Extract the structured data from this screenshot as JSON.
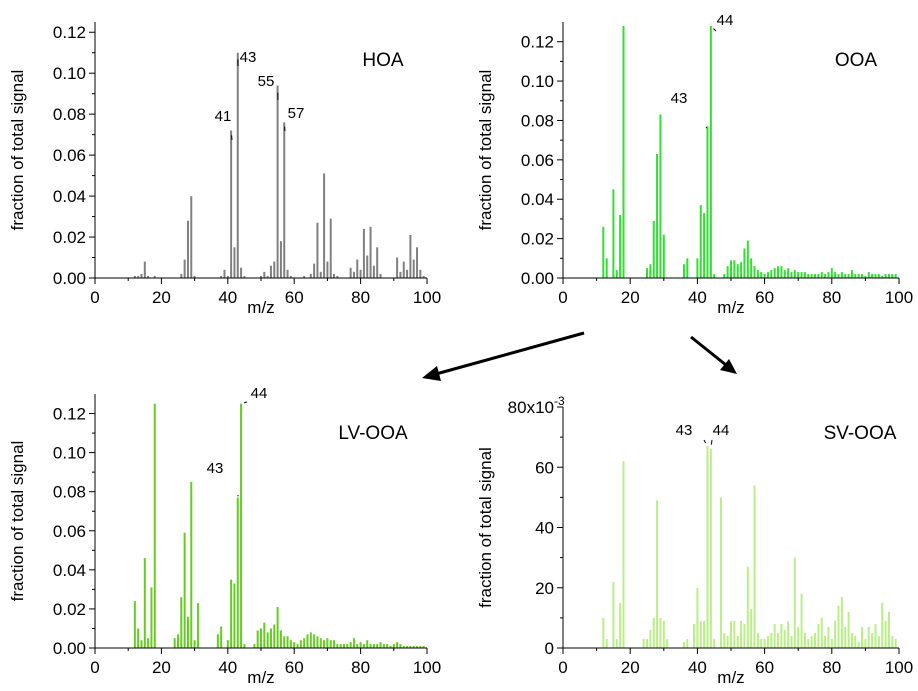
{
  "chart_data": [
    {
      "type": "bar",
      "name_label": "HOA",
      "ylabel": "fraction of total signal",
      "xlabel": "m/z",
      "xlim": [
        0,
        100
      ],
      "ylim": [
        0,
        0.125
      ],
      "xticks": [
        0,
        20,
        40,
        60,
        80,
        100
      ],
      "yticks": [
        0.0,
        0.02,
        0.04,
        0.06,
        0.08,
        0.1,
        0.12
      ],
      "ytick_labels": [
        "0.00",
        "0.02",
        "0.04",
        "0.06",
        "0.08",
        "0.10",
        "0.12"
      ],
      "y_multiplier_label": "",
      "color": "#808080",
      "x": [
        12,
        13,
        14,
        15,
        16,
        18,
        26,
        27,
        28,
        29,
        30,
        38,
        39,
        40,
        41,
        42,
        43,
        44,
        45,
        50,
        51,
        52,
        53,
        54,
        55,
        56,
        57,
        58,
        59,
        63,
        65,
        66,
        67,
        68,
        69,
        70,
        71,
        72,
        73,
        77,
        78,
        79,
        80,
        81,
        82,
        83,
        84,
        85,
        86,
        91,
        92,
        93,
        94,
        95,
        96,
        97,
        98,
        99
      ],
      "values": [
        0.001,
        0.001,
        0.002,
        0.008,
        0.001,
        0.001,
        0.002,
        0.009,
        0.028,
        0.04,
        0.001,
        0.001,
        0.004,
        0.001,
        0.072,
        0.015,
        0.11,
        0.005,
        0.001,
        0.001,
        0.003,
        0.001,
        0.006,
        0.008,
        0.094,
        0.018,
        0.076,
        0.004,
        0.001,
        0.001,
        0.002,
        0.007,
        0.027,
        0.003,
        0.051,
        0.008,
        0.029,
        0.002,
        0.001,
        0.005,
        0.003,
        0.009,
        0.004,
        0.024,
        0.011,
        0.025,
        0.006,
        0.015,
        0.002,
        0.01,
        0.003,
        0.008,
        0.004,
        0.021,
        0.009,
        0.015,
        0.004,
        0.001
      ],
      "annotations": [
        {
          "label": "41",
          "x": 41
        },
        {
          "label": "43",
          "x": 43
        },
        {
          "label": "55",
          "x": 55
        },
        {
          "label": "57",
          "x": 57
        }
      ]
    },
    {
      "type": "bar",
      "name_label": "OOA",
      "ylabel": "fraction of total signal",
      "xlabel": "m/z",
      "xlim": [
        0,
        100
      ],
      "ylim": [
        0,
        0.13
      ],
      "xticks": [
        0,
        20,
        40,
        60,
        80,
        100
      ],
      "yticks": [
        0.0,
        0.02,
        0.04,
        0.06,
        0.08,
        0.1,
        0.12
      ],
      "ytick_labels": [
        "0.00",
        "0.02",
        "0.04",
        "0.06",
        "0.08",
        "0.10",
        "0.12"
      ],
      "y_multiplier_label": "",
      "color": "#33dd33",
      "x": [
        12,
        13,
        15,
        16,
        17,
        18,
        25,
        26,
        27,
        28,
        29,
        30,
        36,
        37,
        40,
        41,
        42,
        43,
        44,
        45,
        48,
        49,
        50,
        51,
        52,
        53,
        54,
        55,
        56,
        57,
        58,
        59,
        60,
        61,
        62,
        63,
        64,
        65,
        66,
        67,
        68,
        69,
        70,
        71,
        72,
        73,
        74,
        75,
        76,
        77,
        78,
        79,
        80,
        81,
        82,
        83,
        84,
        85,
        86,
        87,
        88,
        89,
        90,
        91,
        92,
        93,
        94,
        95,
        96,
        97,
        98,
        99
      ],
      "values": [
        0.026,
        0.01,
        0.045,
        0.004,
        0.032,
        0.128,
        0.005,
        0.007,
        0.029,
        0.063,
        0.083,
        0.022,
        0.007,
        0.01,
        0.01,
        0.037,
        0.033,
        0.077,
        0.128,
        0.002,
        0.002,
        0.006,
        0.009,
        0.009,
        0.007,
        0.008,
        0.015,
        0.019,
        0.01,
        0.006,
        0.004,
        0.003,
        0.002,
        0.003,
        0.004,
        0.005,
        0.006,
        0.006,
        0.004,
        0.005,
        0.003,
        0.004,
        0.003,
        0.003,
        0.003,
        0.002,
        0.002,
        0.002,
        0.002,
        0.003,
        0.002,
        0.003,
        0.005,
        0.003,
        0.002,
        0.003,
        0.002,
        0.002,
        0.004,
        0.002,
        0.002,
        0.002,
        0.001,
        0.003,
        0.002,
        0.002,
        0.002,
        0.001,
        0.002,
        0.002,
        0.002,
        0.002
      ],
      "annotations": [
        {
          "label": "43",
          "x": 43
        },
        {
          "label": "44",
          "x": 44
        }
      ]
    },
    {
      "type": "bar",
      "name_label": "LV-OOA",
      "ylabel": "fraction of total signal",
      "xlabel": "m/z",
      "xlim": [
        0,
        100
      ],
      "ylim": [
        0,
        0.13
      ],
      "xticks": [
        0,
        20,
        40,
        60,
        80,
        100
      ],
      "yticks": [
        0.0,
        0.02,
        0.04,
        0.06,
        0.08,
        0.1,
        0.12
      ],
      "ytick_labels": [
        "0.00",
        "0.02",
        "0.04",
        "0.06",
        "0.08",
        "0.10",
        "0.12"
      ],
      "y_multiplier_label": "",
      "color": "#66cc22",
      "x": [
        12,
        13,
        14,
        15,
        16,
        17,
        18,
        24,
        25,
        26,
        27,
        28,
        29,
        30,
        31,
        37,
        38,
        40,
        41,
        42,
        43,
        44,
        45,
        48,
        49,
        50,
        51,
        52,
        53,
        54,
        55,
        56,
        57,
        58,
        59,
        60,
        61,
        62,
        63,
        64,
        65,
        66,
        67,
        68,
        69,
        70,
        71,
        72,
        73,
        74,
        75,
        76,
        77,
        78,
        79,
        80,
        81,
        82,
        83,
        84,
        85,
        86,
        87,
        88,
        89,
        90,
        91,
        92,
        93,
        94,
        95,
        96,
        97,
        98,
        99
      ],
      "values": [
        0.024,
        0.01,
        0.004,
        0.046,
        0.005,
        0.031,
        0.125,
        0.005,
        0.007,
        0.026,
        0.059,
        0.016,
        0.085,
        0.004,
        0.023,
        0.007,
        0.011,
        0.004,
        0.035,
        0.033,
        0.077,
        0.125,
        0.002,
        0.002,
        0.009,
        0.01,
        0.013,
        0.008,
        0.01,
        0.012,
        0.021,
        0.009,
        0.006,
        0.006,
        0.004,
        0.003,
        0.002,
        0.004,
        0.005,
        0.007,
        0.008,
        0.007,
        0.006,
        0.005,
        0.004,
        0.005,
        0.004,
        0.004,
        0.002,
        0.002,
        0.002,
        0.002,
        0.003,
        0.005,
        0.002,
        0.003,
        0.002,
        0.004,
        0.002,
        0.002,
        0.002,
        0.003,
        0.002,
        0.002,
        0.001,
        0.002,
        0.003,
        0.002,
        0.001,
        0.001,
        0.001,
        0.001,
        0.001,
        0.001,
        0.001
      ],
      "annotations": [
        {
          "label": "43",
          "x": 43
        },
        {
          "label": "44",
          "x": 44
        }
      ]
    },
    {
      "type": "bar",
      "name_label": "SV-OOA",
      "ylabel": "fraction of total signal",
      "xlabel": "m/z",
      "xlim": [
        0,
        100
      ],
      "ylim": [
        0,
        80
      ],
      "xticks": [
        0,
        20,
        40,
        60,
        80,
        100
      ],
      "yticks": [
        0,
        20,
        40,
        60,
        80
      ],
      "ytick_labels": [
        "0",
        "20",
        "40",
        "60",
        "80x10"
      ],
      "y_multiplier_label": "-3",
      "color": "#bbee88",
      "x": [
        12,
        13,
        15,
        16,
        17,
        18,
        24,
        25,
        26,
        27,
        28,
        29,
        30,
        31,
        36,
        37,
        39,
        40,
        41,
        42,
        43,
        44,
        45,
        47,
        48,
        49,
        50,
        51,
        52,
        53,
        54,
        55,
        56,
        57,
        58,
        59,
        60,
        61,
        62,
        63,
        64,
        65,
        66,
        67,
        68,
        69,
        70,
        71,
        72,
        73,
        74,
        75,
        76,
        77,
        78,
        79,
        80,
        81,
        82,
        83,
        84,
        85,
        86,
        87,
        88,
        89,
        90,
        91,
        92,
        93,
        94,
        95,
        96,
        97,
        98,
        99
      ],
      "values": [
        10,
        3,
        22,
        3,
        15,
        62,
        3,
        3,
        6,
        10,
        49,
        10,
        9,
        3,
        2,
        3,
        8,
        20,
        9,
        9,
        67,
        66,
        3,
        50,
        5,
        4,
        9,
        9,
        4,
        9,
        8,
        27,
        13,
        54,
        5,
        3,
        3,
        4,
        5,
        8,
        5,
        8,
        6,
        9,
        4,
        30,
        7,
        18,
        5,
        3,
        4,
        5,
        8,
        10,
        4,
        7,
        3,
        9,
        14,
        17,
        7,
        12,
        5,
        4,
        2,
        7,
        3,
        7,
        5,
        8,
        4,
        15,
        9,
        12,
        4,
        3
      ],
      "annotations": [
        {
          "label": "43",
          "x": 43
        },
        {
          "label": "44",
          "x": 44
        }
      ]
    }
  ]
}
